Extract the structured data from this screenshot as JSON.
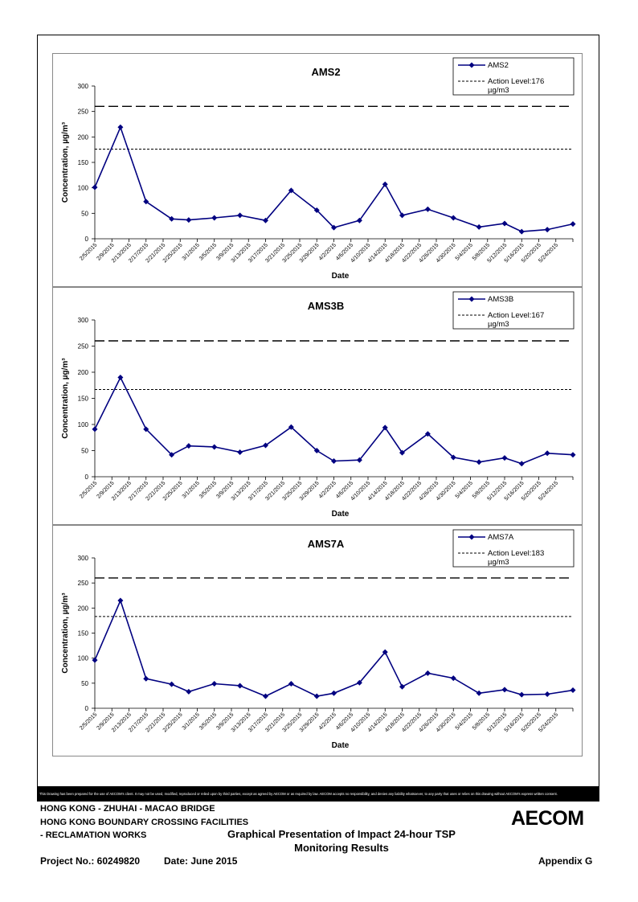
{
  "chart_data": [
    {
      "type": "line",
      "title": "AMS2",
      "xlabel": "Date",
      "ylabel": "Concentration, µg/m³",
      "ylim": [
        0,
        300
      ],
      "yticks": [
        "0",
        "50",
        "100",
        "150",
        "200",
        "250",
        "300"
      ],
      "xticklabels": [
        "2/5/2015",
        "2/9/2015",
        "2/13/2015",
        "2/17/2015",
        "2/21/2015",
        "2/25/2015",
        "3/1/2015",
        "3/5/2015",
        "3/9/2015",
        "3/13/2015",
        "3/17/2015",
        "3/21/2015",
        "3/25/2015",
        "3/29/2015",
        "4/2/2015",
        "4/6/2015",
        "4/10/2015",
        "4/14/2015",
        "4/18/2015",
        "4/22/2015",
        "4/26/2015",
        "4/30/2015",
        "5/4/2015",
        "5/8/2015",
        "5/12/2015",
        "5/16/2015",
        "5/20/2015",
        "5/24/2015"
      ],
      "series": [
        {
          "name": "AMS2",
          "color": "#000080",
          "x": [
            "2/5/2015",
            "2/11/2015",
            "2/17/2015",
            "2/23/2015",
            "2/27/2015",
            "3/5/2015",
            "3/11/2015",
            "3/17/2015",
            "3/23/2015",
            "3/29/2015",
            "4/2/2015",
            "4/8/2015",
            "4/14/2015",
            "4/18/2015",
            "4/24/2015",
            "4/30/2015",
            "5/6/2015",
            "5/12/2015",
            "5/16/2015",
            "5/22/2015",
            "5/28/2015"
          ],
          "values": [
            101,
            219,
            73,
            39,
            37,
            41,
            46,
            36,
            95,
            56,
            22,
            36,
            107,
            46,
            58,
            41,
            23,
            30,
            14,
            18,
            29
          ]
        }
      ],
      "reference_lines": [
        {
          "label": "Action Level:176 µg/m3",
          "value": 176,
          "style": "dotted"
        },
        {
          "label": "",
          "value": 260,
          "style": "dashed"
        }
      ],
      "legend": "top-right"
    },
    {
      "type": "line",
      "title": "AMS3B",
      "xlabel": "Date",
      "ylabel": "Concentration, µg/m³",
      "ylim": [
        0,
        300
      ],
      "yticks": [
        "0",
        "50",
        "100",
        "150",
        "200",
        "250",
        "300"
      ],
      "xticklabels": [
        "2/5/2015",
        "2/9/2015",
        "2/13/2015",
        "2/17/2015",
        "2/21/2015",
        "2/25/2015",
        "3/1/2015",
        "3/5/2015",
        "3/9/2015",
        "3/13/2015",
        "3/17/2015",
        "3/21/2015",
        "3/25/2015",
        "3/29/2015",
        "4/2/2015",
        "4/6/2015",
        "4/10/2015",
        "4/14/2015",
        "4/18/2015",
        "4/22/2015",
        "4/26/2015",
        "4/30/2015",
        "5/4/2015",
        "5/8/2015",
        "5/12/2015",
        "5/16/2015",
        "5/20/2015",
        "5/24/2015"
      ],
      "series": [
        {
          "name": "AMS3B",
          "color": "#000080",
          "x": [
            "2/5/2015",
            "2/11/2015",
            "2/17/2015",
            "2/23/2015",
            "2/27/2015",
            "3/5/2015",
            "3/11/2015",
            "3/17/2015",
            "3/23/2015",
            "3/29/2015",
            "4/2/2015",
            "4/8/2015",
            "4/14/2015",
            "4/18/2015",
            "4/24/2015",
            "4/30/2015",
            "5/6/2015",
            "5/12/2015",
            "5/16/2015",
            "5/22/2015",
            "5/28/2015"
          ],
          "values": [
            91,
            190,
            91,
            42,
            59,
            57,
            47,
            60,
            95,
            50,
            30,
            32,
            94,
            46,
            82,
            37,
            28,
            36,
            25,
            45,
            42
          ]
        }
      ],
      "reference_lines": [
        {
          "label": "Action Level:167 µg/m3",
          "value": 167,
          "style": "dotted"
        },
        {
          "label": "",
          "value": 260,
          "style": "dashed"
        }
      ],
      "legend": "top-right"
    },
    {
      "type": "line",
      "title": "AMS7A",
      "xlabel": "Date",
      "ylabel": "Concentration, µg/m³",
      "ylim": [
        0,
        300
      ],
      "yticks": [
        "0",
        "50",
        "100",
        "150",
        "200",
        "250",
        "300"
      ],
      "xticklabels": [
        "2/5/2015",
        "2/9/2015",
        "2/13/2015",
        "2/17/2015",
        "2/21/2015",
        "2/25/2015",
        "3/1/2015",
        "3/5/2015",
        "3/9/2015",
        "3/13/2015",
        "3/17/2015",
        "3/21/2015",
        "3/25/2015",
        "3/29/2015",
        "4/2/2015",
        "4/6/2015",
        "4/10/2015",
        "4/14/2015",
        "4/18/2015",
        "4/22/2015",
        "4/26/2015",
        "4/30/2015",
        "5/4/2015",
        "5/8/2015",
        "5/12/2015",
        "5/16/2015",
        "5/20/2015",
        "5/24/2015"
      ],
      "series": [
        {
          "name": "AMS7A",
          "color": "#000080",
          "x": [
            "2/5/2015",
            "2/11/2015",
            "2/17/2015",
            "2/23/2015",
            "2/27/2015",
            "3/5/2015",
            "3/11/2015",
            "3/17/2015",
            "3/23/2015",
            "3/29/2015",
            "4/2/2015",
            "4/8/2015",
            "4/14/2015",
            "4/18/2015",
            "4/24/2015",
            "4/30/2015",
            "5/6/2015",
            "5/12/2015",
            "5/16/2015",
            "5/22/2015",
            "5/28/2015"
          ],
          "values": [
            96,
            215,
            59,
            48,
            33,
            49,
            45,
            24,
            49,
            24,
            30,
            51,
            112,
            43,
            70,
            60,
            30,
            37,
            27,
            28,
            36
          ]
        }
      ],
      "reference_lines": [
        {
          "label": "Action Level:183 µg/m3",
          "value": 183,
          "style": "dotted"
        },
        {
          "label": "",
          "value": 260,
          "style": "dashed"
        }
      ],
      "legend": "top-right"
    }
  ],
  "footer": {
    "disclaimer": "This Drawing has been prepared for the use of AECOM's client. It may not be used, modified, reproduced or relied upon by third parties, except as agreed by AECOM or as required by law. AECOM accepts no responsibility, and denies any liability whatsoever, to any party that uses or relies on this drawing without AECOM's express written consent.",
    "project_line1": "HONG KONG - ZHUHAI - MACAO BRIDGE",
    "project_line2": "HONG KONG BOUNDARY CROSSING FACILITIES",
    "project_line3": "- RECLAMATION WORKS",
    "title_line1": "Graphical Presentation of Impact 24-hour TSP",
    "title_line2": "Monitoring Results",
    "logo_text": "AECOM",
    "project_no": "Project No.: 60249820",
    "date": "Date: June 2015",
    "appendix": "Appendix G"
  }
}
